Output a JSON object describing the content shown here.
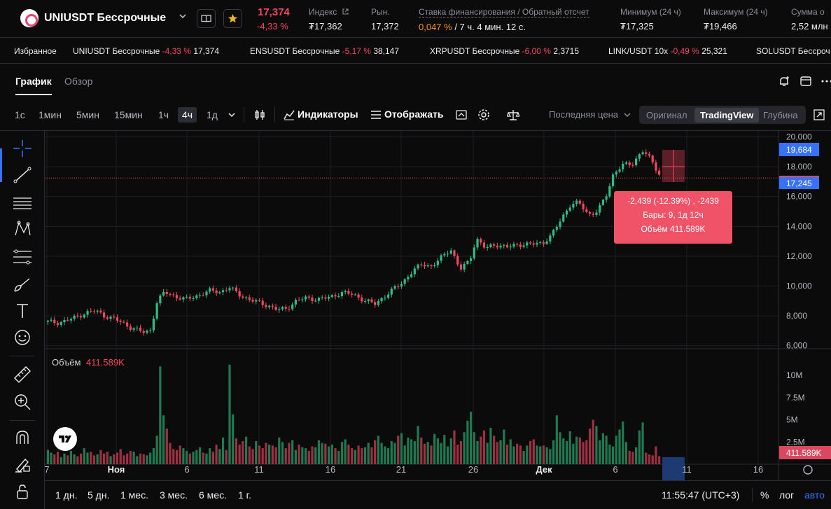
{
  "header": {
    "pair": "UNIUSDT Бессрочные",
    "last_price": "17,374",
    "change": "-4,33 %",
    "stats": [
      {
        "label": "Индекс",
        "value": "₮17,362"
      },
      {
        "label": "Рын.",
        "value": "17,372"
      },
      {
        "label": "Ставка финансирования / Обратный отсчет",
        "value_orange": "0,047 %",
        "value_rest": " / 7 ч. 4 мин. 12 с."
      },
      {
        "label": "Минимум (24 ч)",
        "value": "₮17,325"
      },
      {
        "label": "Максимум (24 ч)",
        "value": "₮19,466"
      },
      {
        "label": "Сумма о",
        "value": "2,52 млн"
      }
    ]
  },
  "ticker": {
    "favorites": "Избранное",
    "items": [
      {
        "name": "UNIUSDT Бессрочные",
        "change": "-4,33 %",
        "price": "17,374"
      },
      {
        "name": "ENSUSDT Бессрочные",
        "change": "-5,17 %",
        "price": "38,147"
      },
      {
        "name": "XRPUSDT Бессрочные",
        "change": "-6,00 %",
        "price": "2,3715"
      },
      {
        "name": "LINK/USDT 10x",
        "change": "-0,49 %",
        "price": "25,321"
      },
      {
        "name": "SOLUSDT Бессроч",
        "change": "",
        "price": ""
      }
    ]
  },
  "tabs": {
    "chart": "График",
    "overview": "Обзор"
  },
  "toolbar": {
    "timeframes": [
      "1с",
      "1мин",
      "5мин",
      "15мин",
      "1ч",
      "4ч",
      "1д"
    ],
    "active_timeframe": "4ч",
    "indicators": "Индикаторы",
    "display": "Отображать",
    "price_type": "Последняя цена",
    "views": [
      "Оригинал",
      "TradingView",
      "Глубина"
    ],
    "active_view": "TradingView"
  },
  "chart_data": {
    "type": "candlestick",
    "price_axis": {
      "ticks": [
        "20,000",
        "18,000",
        "16,000",
        "14,000",
        "12,000",
        "10,000",
        "8,000",
        "6,000"
      ],
      "ylim": [
        5800,
        20400
      ]
    },
    "volume_axis": {
      "ticks": [
        "10M",
        "7.5M",
        "5M",
        "2.5M"
      ]
    },
    "x_ticks": [
      "7",
      "Ноя",
      "6",
      "11",
      "16",
      "21",
      "26",
      "Дек",
      "6",
      "11",
      "16"
    ],
    "price_labels": {
      "crosshair": "19,684",
      "last": "17,245"
    },
    "volume_label": "Объём",
    "volume_value": "411.589K",
    "volume_last_tag": "411.589K",
    "measure_tooltip": {
      "line1": "-2,439 (-12.39%) , -2439",
      "line2": "Бары: 9, 1д 12ч",
      "line3": "Объём 411.589K"
    },
    "colors": {
      "up": "#2ebd85",
      "down": "#f6465d",
      "volume_up": "#1f7a52",
      "volume_down": "#9e3044"
    },
    "price_path": [
      [
        0,
        7600
      ],
      [
        12,
        7550
      ],
      [
        25,
        7800
      ],
      [
        40,
        8200
      ],
      [
        50,
        8350
      ],
      [
        60,
        8000
      ],
      [
        72,
        7750
      ],
      [
        85,
        7300
      ],
      [
        100,
        6900
      ],
      [
        108,
        7000
      ],
      [
        115,
        8900
      ],
      [
        123,
        9600
      ],
      [
        135,
        9300
      ],
      [
        145,
        9100
      ],
      [
        160,
        9400
      ],
      [
        172,
        9700
      ],
      [
        182,
        9600
      ],
      [
        192,
        9900
      ],
      [
        200,
        9500
      ],
      [
        212,
        9100
      ],
      [
        222,
        8900
      ],
      [
        232,
        8700
      ],
      [
        242,
        8400
      ],
      [
        252,
        8500
      ],
      [
        262,
        9000
      ],
      [
        272,
        9200
      ],
      [
        285,
        9100
      ],
      [
        297,
        9250
      ],
      [
        310,
        9550
      ],
      [
        322,
        9450
      ],
      [
        335,
        9000
      ],
      [
        345,
        8800
      ],
      [
        355,
        9300
      ],
      [
        365,
        9800
      ],
      [
        375,
        10300
      ],
      [
        385,
        11000
      ],
      [
        395,
        11500
      ],
      [
        405,
        11300
      ],
      [
        415,
        11900
      ],
      [
        425,
        12500
      ],
      [
        435,
        11100
      ],
      [
        445,
        11700
      ],
      [
        452,
        13200
      ],
      [
        462,
        12500
      ],
      [
        472,
        12800
      ],
      [
        485,
        12600
      ],
      [
        497,
        12800
      ],
      [
        510,
        12800
      ],
      [
        522,
        12900
      ],
      [
        530,
        13300
      ],
      [
        540,
        14300
      ],
      [
        550,
        15400
      ],
      [
        560,
        15600
      ],
      [
        570,
        14800
      ],
      [
        580,
        15000
      ],
      [
        590,
        16200
      ],
      [
        597,
        17600
      ],
      [
        607,
        18100
      ],
      [
        617,
        18200
      ],
      [
        627,
        19100
      ],
      [
        637,
        18400
      ],
      [
        645,
        17500
      ]
    ],
    "volume_bars": [
      1.6,
      1.3,
      1.1,
      1.4,
      0.8,
      1.2,
      1.0,
      1.5,
      1.1,
      0.9,
      1.2,
      1.8,
      1.3,
      1.4,
      1.0,
      1.1,
      1.6,
      1.2,
      1.4,
      0.9,
      1.1,
      1.3,
      1.7,
      1.0,
      1.2,
      1.5,
      1.4,
      0.9,
      1.2,
      1.1,
      1.0,
      1.3,
      1.8,
      3.2,
      11.0,
      5.5,
      4.0,
      2.4,
      1.7,
      1.6,
      2.1,
      1.8,
      1.5,
      1.2,
      1.4,
      1.6,
      1.9,
      1.3,
      1.2,
      1.8,
      1.4,
      2.2,
      1.7,
      3.0,
      1.6,
      11.2,
      5.6,
      2.9,
      2.2,
      2.6,
      3.1,
      2.0,
      1.7,
      2.6,
      2.1,
      1.8,
      2.4,
      2.2,
      2.1,
      1.9,
      3.0,
      2.5,
      1.8,
      2.4,
      2.7,
      1.6,
      2.2,
      1.9,
      1.8,
      1.5,
      2.0,
      1.9,
      2.7,
      2.4,
      2.3,
      2.0,
      2.2,
      1.8,
      1.5,
      2.5,
      2.8,
      2.2,
      1.8,
      1.6,
      2.1,
      1.8,
      1.9,
      2.4,
      1.9,
      2.7,
      3.2,
      2.4,
      2.0,
      1.8,
      2.6,
      2.4,
      3.2,
      3.5,
      2.1,
      3.0,
      2.8,
      2.6,
      4.3,
      3.0,
      2.3,
      2.5,
      2.1,
      3.4,
      2.9,
      2.4,
      3.3,
      2.0,
      2.9,
      3.8,
      2.2,
      2.6,
      3.6,
      4.9,
      5.9,
      3.6,
      2.6,
      3.1,
      3.8,
      2.4,
      4.1,
      3.2,
      2.5,
      2.7,
      3.9,
      2.2,
      2.8,
      2.0,
      2.3,
      2.1,
      1.5,
      2.1,
      2.6,
      2.8,
      2.1,
      2.0,
      2.1,
      1.9,
      1.7,
      2.7,
      5.5,
      3.6,
      2.9,
      2.6,
      3.7,
      2.3,
      3.1,
      3.0,
      2.5,
      2.7,
      4.0,
      5.0,
      4.3,
      2.7,
      3.5,
      3.2,
      2.2,
      2.0,
      3.2,
      3.9,
      4.8,
      2.5,
      1.5,
      1.4,
      1.9,
      3.8,
      4.7,
      1.3,
      1.1,
      1.0,
      2.0,
      0.9
    ]
  },
  "bottom": {
    "ranges": [
      "1 дн.",
      "5 дн.",
      "1 мес.",
      "3 мес.",
      "6 мес.",
      "1 г."
    ],
    "clock": "11:55:47 (UTC+3)",
    "pct": "%",
    "log": "лог",
    "auto": "авто"
  }
}
